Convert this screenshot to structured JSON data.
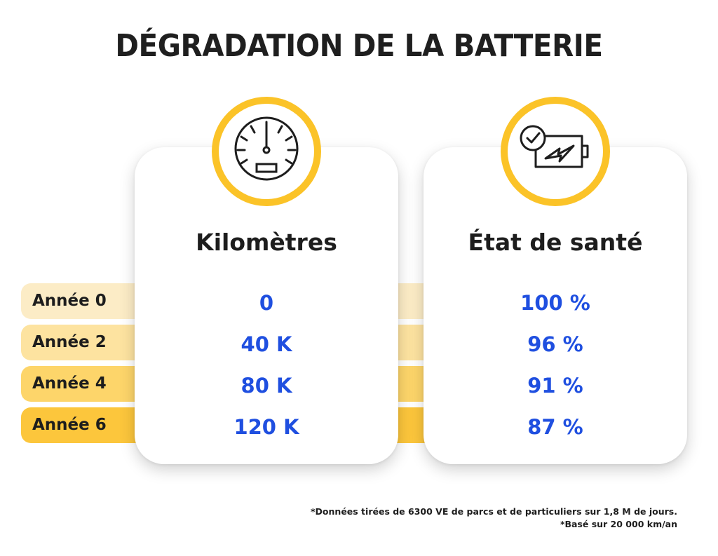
{
  "title": "DÉGRADATION DE LA BATTERIE",
  "columns": {
    "kilometres_heading": "Kilomètres",
    "health_heading": "État de santé"
  },
  "rows": [
    {
      "year": "Année 0",
      "km": "0",
      "health": "100 %",
      "color": "#fcecc6"
    },
    {
      "year": "Année 2",
      "km": "40 K",
      "health": "96 %",
      "color": "#fde3a0"
    },
    {
      "year": "Année 4",
      "km": "80 K",
      "health": "91 %",
      "color": "#fdd56a"
    },
    {
      "year": "Année 6",
      "km": "120 K",
      "health": "87 %",
      "color": "#fcc63c"
    }
  ],
  "icons": {
    "left": "speedometer-icon",
    "right": "battery-health-icon"
  },
  "footnotes": [
    "*Données tirées de 6300 VE de parcs et de particuliers sur 1,8 M de jours.",
    "*Basé sur 20 000 km/an"
  ],
  "colors": {
    "accent_yellow": "#fbc328",
    "value_blue": "#1f4fe0",
    "text_dark": "#1d1d1d"
  }
}
